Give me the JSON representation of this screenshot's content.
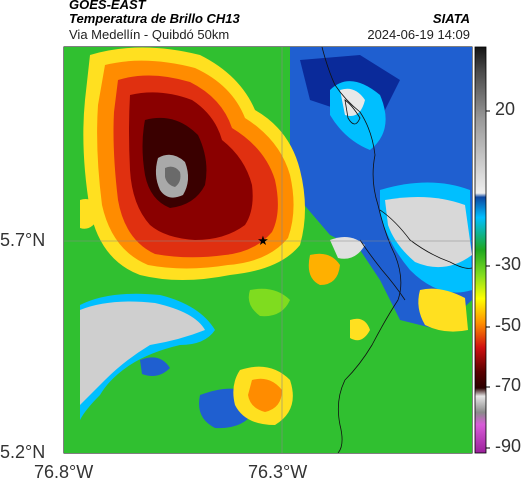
{
  "header": {
    "title": "GOES-EAST",
    "product": "Temperatura de Brillo CH13",
    "region": "Via Medellín - Quibdó 50km",
    "organization": "SIATA",
    "timestamp": "2024-06-19 14:09"
  },
  "axes": {
    "lat_ticks": [
      "5.7°N",
      "5.2°N"
    ],
    "lon_ticks": [
      "76.8°W",
      "76.3°W"
    ]
  },
  "colorbar": {
    "ticks": [
      "20",
      "-30",
      "-50",
      "-70",
      "-90"
    ],
    "range": [
      -95,
      40
    ]
  },
  "marker": {
    "symbol": "★"
  },
  "colors": {
    "clear_sky": "#c8c8c8",
    "warm_cloud": "#1f5fd0",
    "mid_cloud": "#30c030",
    "cold_cloud": "#ffe020",
    "very_cold": "#e03010",
    "coldest": "#5a0000",
    "overshoot": "#a9a9a9"
  }
}
